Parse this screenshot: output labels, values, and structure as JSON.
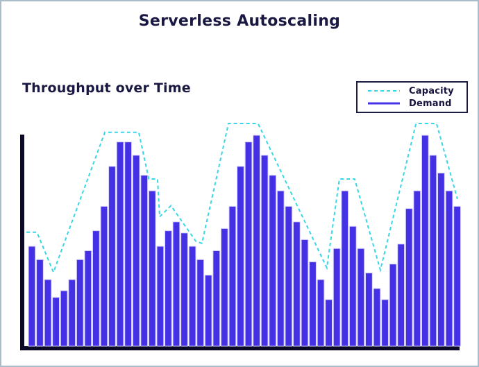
{
  "page": {
    "title": "Serverless Autoscaling"
  },
  "chart": {
    "subtitle": "Throughput over Time"
  },
  "legend": {
    "items": [
      {
        "label": "Capacity",
        "style": "dashed"
      },
      {
        "label": "Demand",
        "style": "solid"
      }
    ]
  },
  "colors": {
    "demand": "#4431e6",
    "demand_edge": "#d8d3f5",
    "capacity": "#38d7e8",
    "axis": "#0b0b28",
    "title_text": "#181842",
    "legend_border": "#1c1c40",
    "frame_border": "#a9bcca",
    "background": "#ffffff"
  },
  "chart_data": {
    "type": "bar",
    "title": "Serverless Autoscaling",
    "subtitle": "Throughput over Time",
    "xlabel": "",
    "ylabel": "",
    "ylim": [
      0,
      100
    ],
    "grid": false,
    "tick_labels_visible": false,
    "legend_position": "upper right",
    "series": [
      {
        "name": "Demand",
        "type": "bar",
        "values": [
          45,
          39,
          30,
          22,
          25,
          30,
          39,
          43,
          52,
          63,
          81,
          92,
          92,
          86,
          77,
          70,
          45,
          52,
          56,
          51,
          45,
          39,
          32,
          43,
          53,
          63,
          81,
          92,
          95,
          86,
          77,
          70,
          63,
          56,
          48,
          38,
          30,
          21,
          44,
          70,
          54,
          44,
          33,
          26,
          21,
          37,
          46,
          62,
          70,
          95,
          86,
          78,
          70,
          63
        ]
      },
      {
        "name": "Capacity",
        "type": "line",
        "style": "dashed",
        "points_x_fraction_value": [
          [
            0.005,
            51
          ],
          [
            0.029,
            51
          ],
          [
            0.067,
            33
          ],
          [
            0.185,
            96
          ],
          [
            0.263,
            96
          ],
          [
            0.286,
            75
          ],
          [
            0.306,
            75
          ],
          [
            0.311,
            58
          ],
          [
            0.337,
            63
          ],
          [
            0.394,
            47
          ],
          [
            0.408,
            46
          ],
          [
            0.469,
            100
          ],
          [
            0.537,
            100
          ],
          [
            0.695,
            35
          ],
          [
            0.724,
            75
          ],
          [
            0.759,
            75
          ],
          [
            0.818,
            34
          ],
          [
            0.9,
            100
          ],
          [
            0.947,
            100
          ],
          [
            0.995,
            66
          ]
        ]
      }
    ]
  }
}
